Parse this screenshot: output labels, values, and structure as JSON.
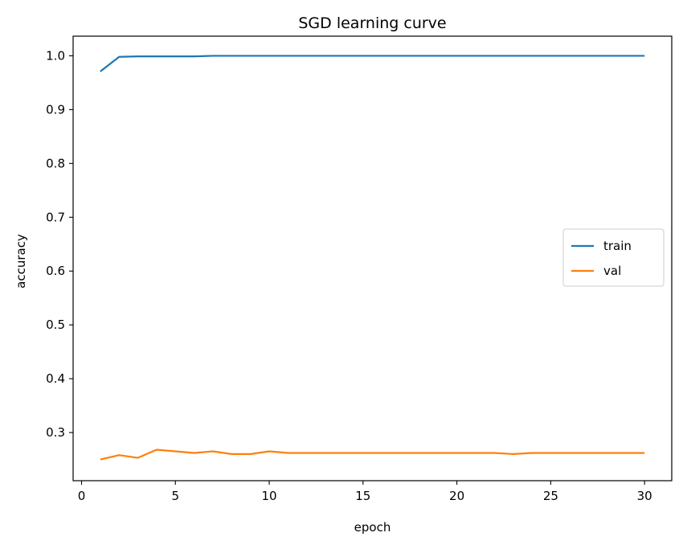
{
  "chart_data": {
    "type": "line",
    "title": "SGD learning curve",
    "xlabel": "epoch",
    "ylabel": "accuracy",
    "xlim": [
      -0.45,
      31.45
    ],
    "ylim": [
      0.2105,
      1.0365
    ],
    "xticks": [
      0,
      5,
      10,
      15,
      20,
      25,
      30
    ],
    "yticks": [
      0.3,
      0.4,
      0.5,
      0.6,
      0.7,
      0.8,
      0.9,
      1.0
    ],
    "ytick_labels": [
      "0.3",
      "0.4",
      "0.5",
      "0.6",
      "0.7",
      "0.8",
      "0.9",
      "1.0"
    ],
    "grid": false,
    "legend_position": "center-right",
    "x": [
      1,
      2,
      3,
      4,
      5,
      6,
      7,
      8,
      9,
      10,
      11,
      12,
      13,
      14,
      15,
      16,
      17,
      18,
      19,
      20,
      21,
      22,
      23,
      24,
      25,
      26,
      27,
      28,
      29,
      30
    ],
    "series": [
      {
        "name": "train",
        "color": "#1f77b4",
        "values": [
          0.971,
          0.998,
          0.999,
          0.999,
          0.999,
          0.999,
          1.0,
          1.0,
          1.0,
          1.0,
          1.0,
          1.0,
          1.0,
          1.0,
          1.0,
          1.0,
          1.0,
          1.0,
          1.0,
          1.0,
          1.0,
          1.0,
          1.0,
          1.0,
          1.0,
          1.0,
          1.0,
          1.0,
          1.0,
          1.0
        ]
      },
      {
        "name": "val",
        "color": "#ff7f0e",
        "values": [
          0.25,
          0.258,
          0.253,
          0.268,
          0.265,
          0.262,
          0.265,
          0.26,
          0.26,
          0.265,
          0.262,
          0.262,
          0.262,
          0.262,
          0.262,
          0.262,
          0.262,
          0.262,
          0.262,
          0.262,
          0.262,
          0.262,
          0.26,
          0.262,
          0.262,
          0.262,
          0.262,
          0.262,
          0.262,
          0.262
        ]
      }
    ]
  }
}
